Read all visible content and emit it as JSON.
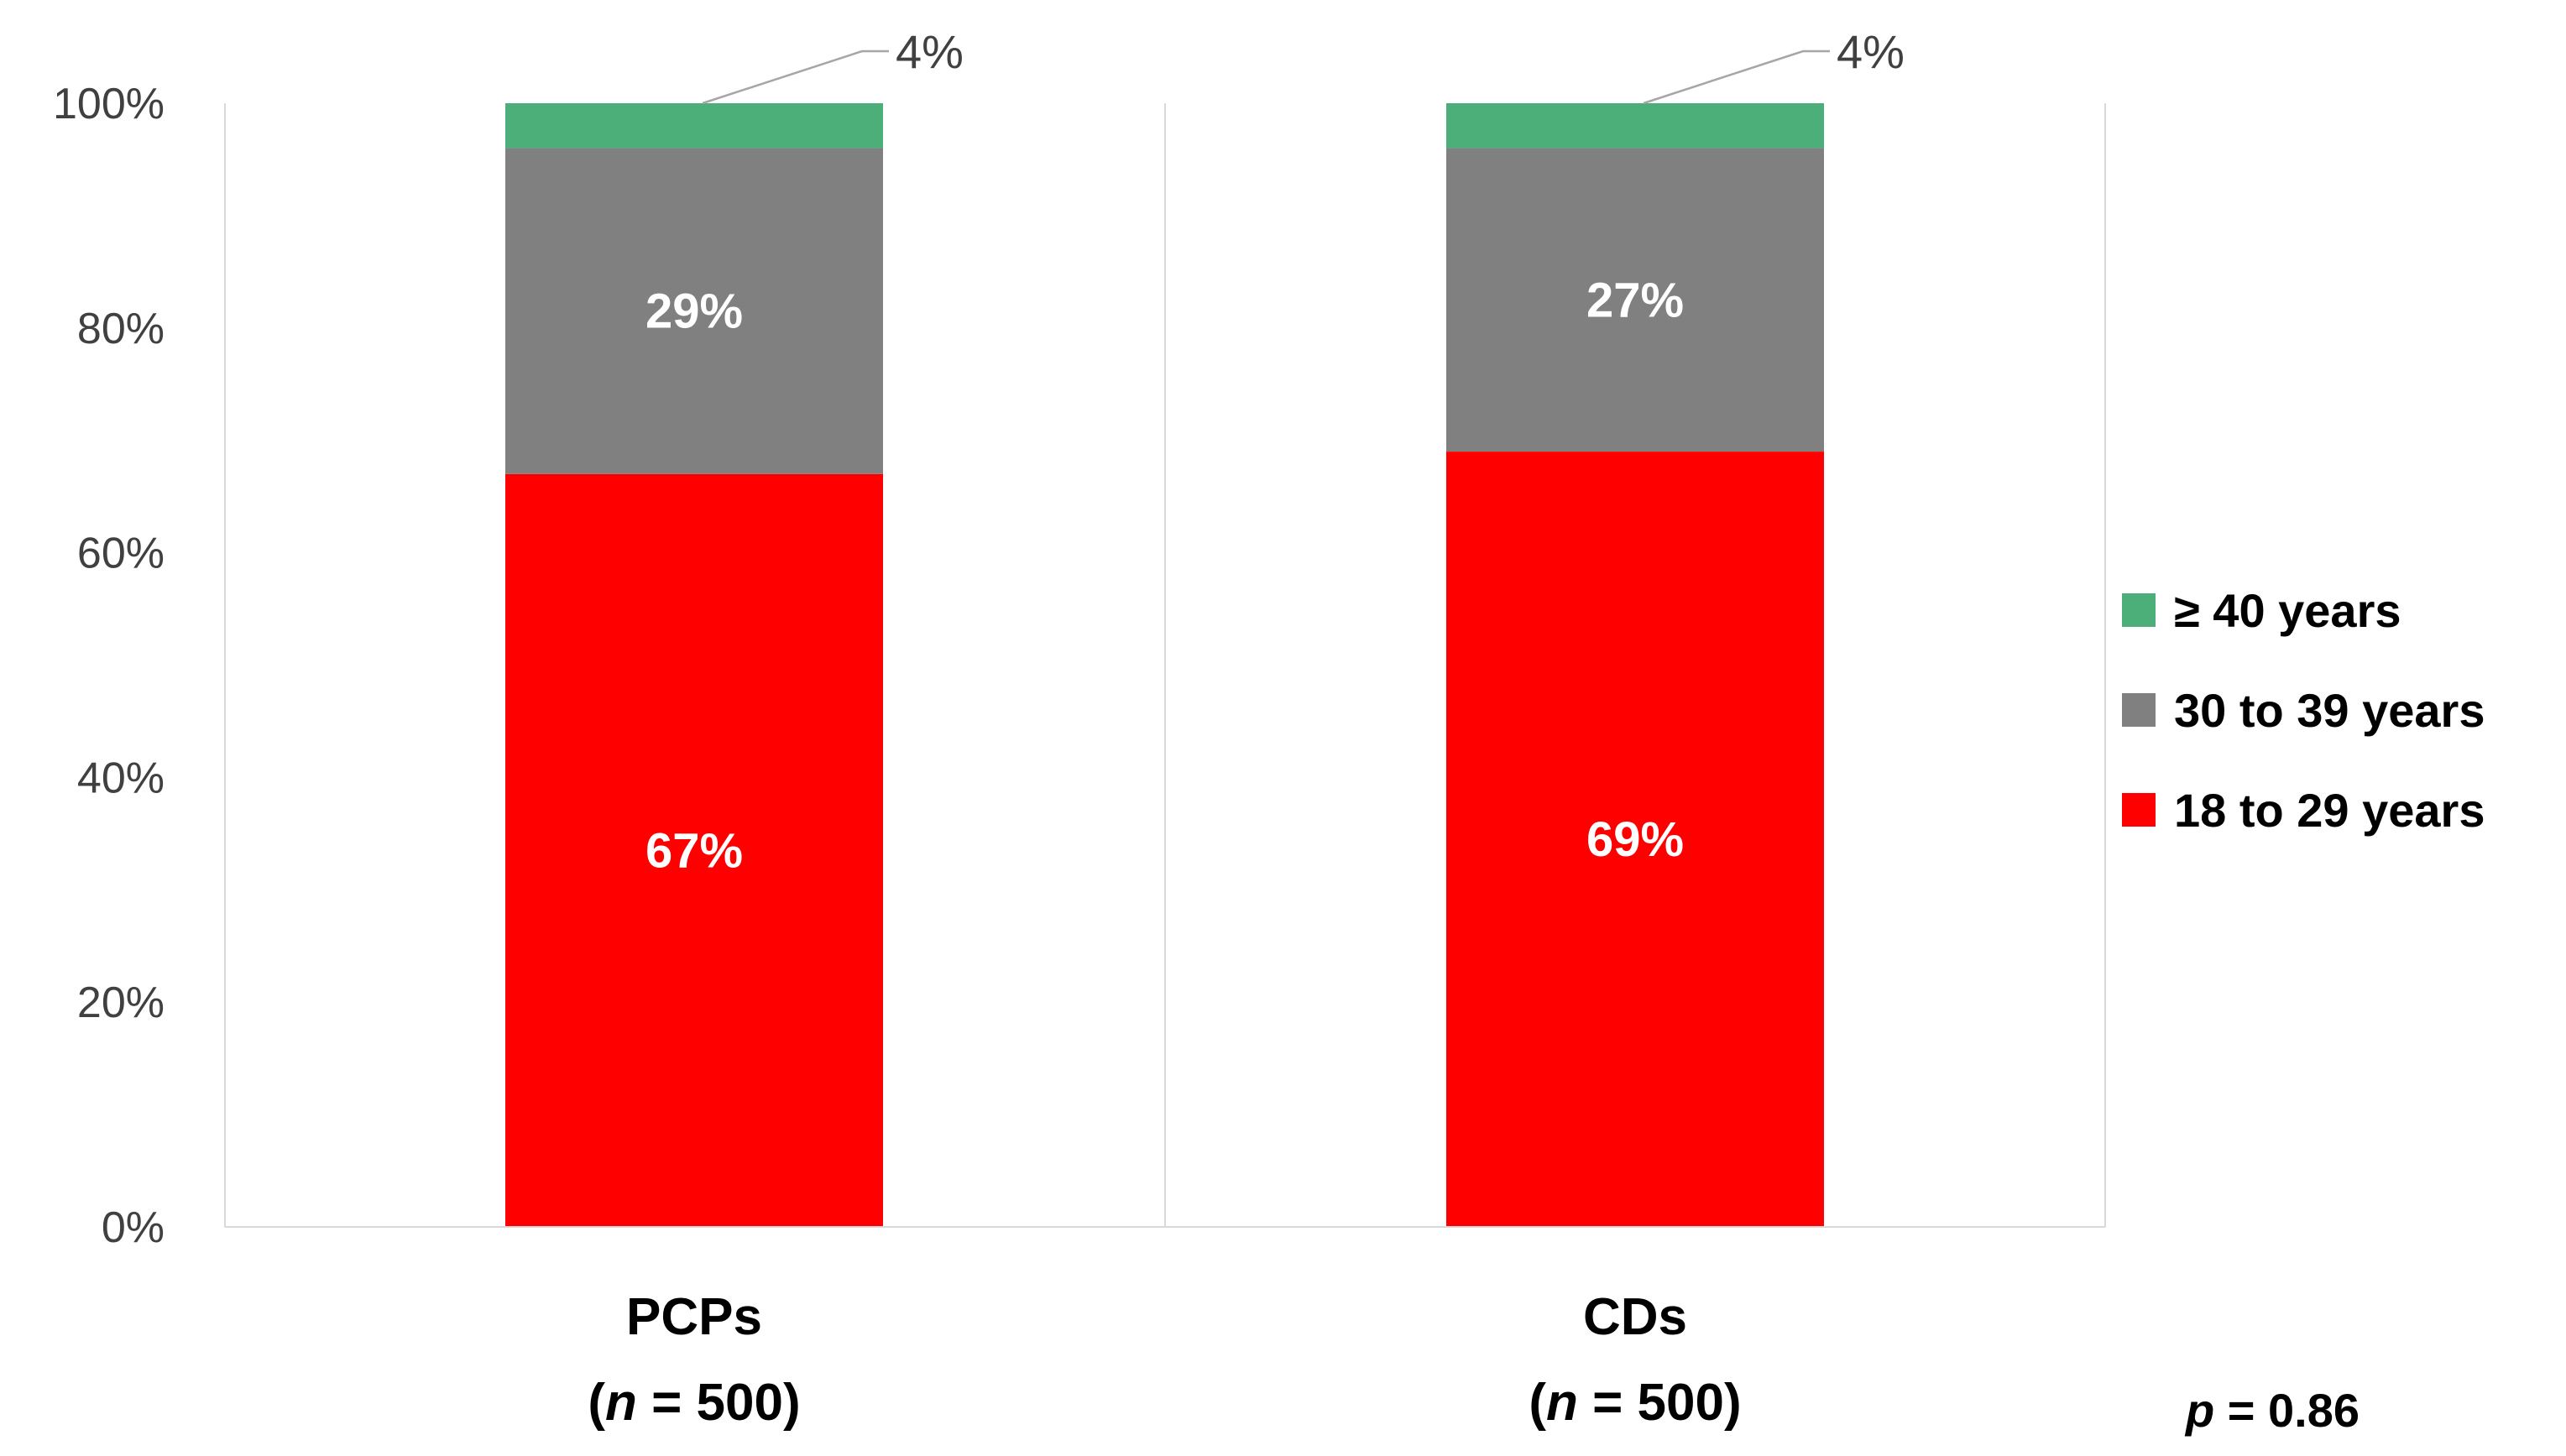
{
  "chart_data": {
    "type": "bar",
    "stacked": true,
    "percent_stacked": true,
    "categories": [
      {
        "name": "PCPs",
        "n_prefix": "(",
        "n_var": "n",
        "n_suffix": " = 500)"
      },
      {
        "name": "CDs",
        "n_prefix": "(",
        "n_var": "n",
        "n_suffix": " = 500)"
      }
    ],
    "series": [
      {
        "name": "18 to 29 years",
        "color": "#ff0000",
        "values": [
          67,
          69
        ],
        "labels": [
          "67%",
          "69%"
        ],
        "label_style": "inside"
      },
      {
        "name": "30 to 39 years",
        "color": "#808080",
        "values": [
          29,
          27
        ],
        "labels": [
          "29%",
          "27%"
        ],
        "label_style": "inside"
      },
      {
        "name": "≥ 40 years",
        "color": "#4caf7a",
        "values": [
          4,
          4
        ],
        "labels": [
          "4%",
          "4%"
        ],
        "label_style": "callout"
      }
    ],
    "ylim": [
      0,
      100
    ],
    "yticks": [
      {
        "value": 0,
        "label": "0%"
      },
      {
        "value": 20,
        "label": "20%"
      },
      {
        "value": 40,
        "label": "40%"
      },
      {
        "value": 60,
        "label": "60%"
      },
      {
        "value": 80,
        "label": "80%"
      },
      {
        "value": 100,
        "label": "100%"
      }
    ],
    "legend_order": [
      "≥ 40 years",
      "30 to 39 years",
      "18 to 29 years"
    ],
    "legend_position": "right",
    "annotation": {
      "var": "p",
      "text": " = 0.86"
    },
    "title": "",
    "xlabel": "",
    "ylabel": ""
  }
}
